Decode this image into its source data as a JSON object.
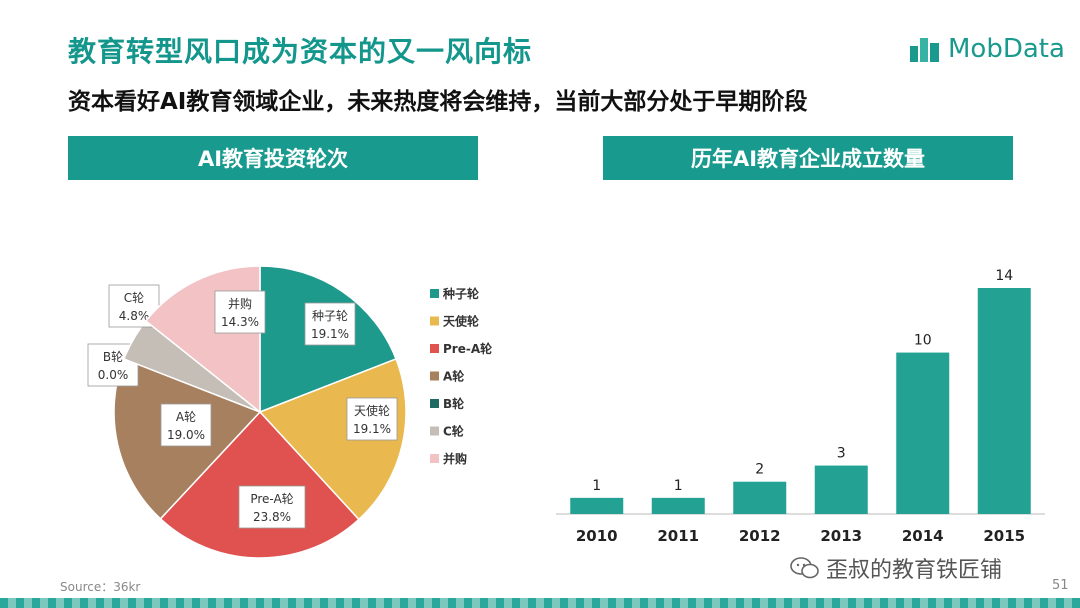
{
  "slide": {
    "title": "教育转型风口成为资本的又一风向标",
    "subtitle": "资本看好AI教育领域企业，未来热度将会维持，当前大部分处于早期阶段",
    "logo_text": "MobData",
    "source": "Source：36kr",
    "watermark": "歪叔的教育铁匠铺",
    "page_number": "51",
    "accent_color": "#199a8e"
  },
  "chart_data": [
    {
      "type": "pie",
      "title": "AI教育投资轮次",
      "slices": [
        {
          "label": "种子轮",
          "value": 19.1,
          "display": "19.1%",
          "color": "#1e9a8c"
        },
        {
          "label": "天使轮",
          "value": 19.1,
          "display": "19.1%",
          "color": "#e9b84e"
        },
        {
          "label": "Pre-A轮",
          "value": 23.8,
          "display": "23.8%",
          "color": "#e0524f"
        },
        {
          "label": "A轮",
          "value": 19.0,
          "display": "19.0%",
          "color": "#a7805f"
        },
        {
          "label": "B轮",
          "value": 0.0,
          "display": "0.0%",
          "color": "#1f6b63"
        },
        {
          "label": "C轮",
          "value": 4.8,
          "display": "4.8%",
          "color": "#c4beb6"
        },
        {
          "label": "并购",
          "value": 14.3,
          "display": "14.3%",
          "color": "#f2c2c4"
        }
      ],
      "legend_position": "right"
    },
    {
      "type": "bar",
      "title": "历年AI教育企业成立数量",
      "categories": [
        "2010",
        "2011",
        "2012",
        "2013",
        "2014",
        "2015"
      ],
      "values": [
        1,
        1,
        2,
        3,
        10,
        14
      ],
      "color": "#23a294",
      "ylim": [
        0,
        14
      ]
    }
  ]
}
